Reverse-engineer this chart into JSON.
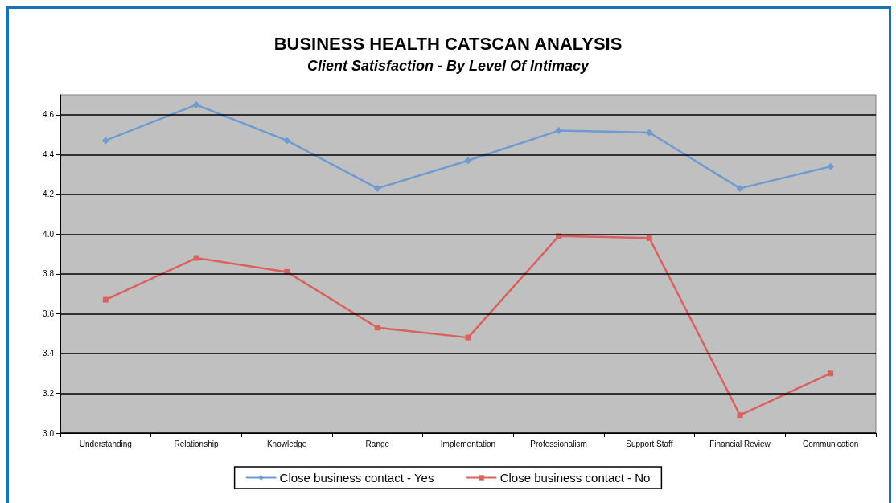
{
  "chart_data": {
    "type": "line",
    "title": "BUSINESS HEALTH CATSCAN ANALYSIS",
    "subtitle": "Client Satisfaction - By Level Of Intimacy",
    "categories": [
      "Understanding",
      "Relationship",
      "Knowledge",
      "Range",
      "Implementation",
      "Professionalism",
      "Support Staff",
      "Financial Review",
      "Communication"
    ],
    "series": [
      {
        "name": "Close business contact - Yes",
        "color": "#6f9bd1",
        "marker": "diamond",
        "values": [
          4.47,
          4.65,
          4.47,
          4.23,
          4.37,
          4.52,
          4.51,
          4.23,
          4.34
        ]
      },
      {
        "name": "Close business contact - No",
        "color": "#d9625f",
        "marker": "square",
        "values": [
          3.67,
          3.88,
          3.81,
          3.53,
          3.48,
          3.99,
          3.98,
          3.09,
          3.3
        ]
      }
    ],
    "ylim": [
      3.0,
      4.7
    ],
    "yticks": [
      {
        "value": 3,
        "label": "3.0"
      },
      3.2,
      3.4,
      3.6,
      3.8,
      {
        "value": 4,
        "label": "4.0"
      },
      4.2,
      4.4,
      4.6
    ],
    "grid": "y",
    "legend": "bottom",
    "line_style": "solid"
  }
}
